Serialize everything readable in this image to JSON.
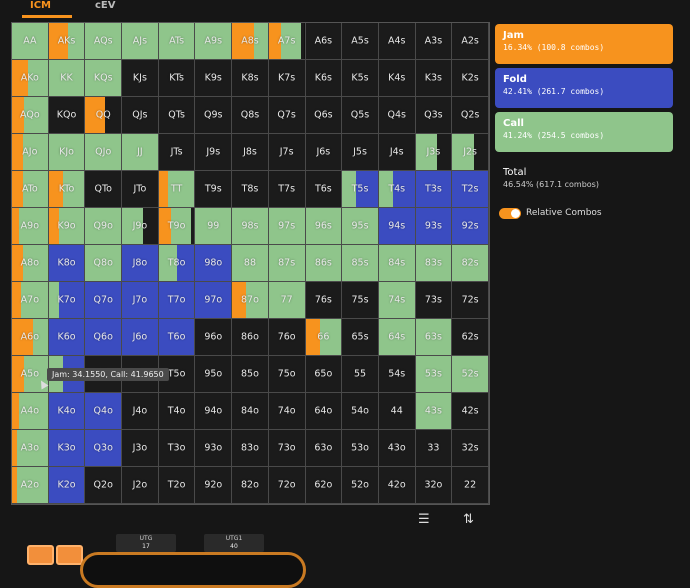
{
  "tabs": [
    {
      "label": "ICM",
      "active": true
    },
    {
      "label": "cEV",
      "active": false
    }
  ],
  "colors": {
    "jam": "#f7931e",
    "fold": "#3b4cc0",
    "call": "#8fc58b",
    "dark": "#1b1b1b"
  },
  "legend": {
    "jam": {
      "title": "Jam",
      "sub": "16.34% (100.8 combos)"
    },
    "fold": {
      "title": "Fold",
      "sub": "42.41% (261.7 combos)"
    },
    "call": {
      "title": "Call",
      "sub": "41.24% (254.5 combos)"
    }
  },
  "total": {
    "title": "Total",
    "sub": "46.54% (617.1 combos)"
  },
  "toggle": {
    "label": "Relative Combos",
    "on": true
  },
  "tooltip": "Jam: 34.1550, Call: 41.9650",
  "seats": [
    {
      "pos": "UTG",
      "stack": "17"
    },
    {
      "pos": "UTG1",
      "stack": "40"
    }
  ],
  "icons": {
    "list": "list-icon",
    "sort": "sort-arrows-icon"
  },
  "hands": [
    [
      "AA",
      "AKs",
      "AQs",
      "AJs",
      "ATs",
      "A9s",
      "A8s",
      "A7s",
      "A6s",
      "A5s",
      "A4s",
      "A3s",
      "A2s"
    ],
    [
      "AKo",
      "KK",
      "KQs",
      "KJs",
      "KTs",
      "K9s",
      "K8s",
      "K7s",
      "K6s",
      "K5s",
      "K4s",
      "K3s",
      "K2s"
    ],
    [
      "AQo",
      "KQo",
      "QQ",
      "QJs",
      "QTs",
      "Q9s",
      "Q8s",
      "Q7s",
      "Q6s",
      "Q5s",
      "Q4s",
      "Q3s",
      "Q2s"
    ],
    [
      "AJo",
      "KJo",
      "QJo",
      "JJ",
      "JTs",
      "J9s",
      "J8s",
      "J7s",
      "J6s",
      "J5s",
      "J4s",
      "J3s",
      "J2s"
    ],
    [
      "ATo",
      "KTo",
      "QTo",
      "JTo",
      "TT",
      "T9s",
      "T8s",
      "T7s",
      "T6s",
      "T5s",
      "T4s",
      "T3s",
      "T2s"
    ],
    [
      "A9o",
      "K9o",
      "Q9o",
      "J9o",
      "T9o",
      "99",
      "98s",
      "97s",
      "96s",
      "95s",
      "94s",
      "93s",
      "92s"
    ],
    [
      "A8o",
      "K8o",
      "Q8o",
      "J8o",
      "T8o",
      "98o",
      "88",
      "87s",
      "86s",
      "85s",
      "84s",
      "83s",
      "82s"
    ],
    [
      "A7o",
      "K7o",
      "Q7o",
      "J7o",
      "T7o",
      "97o",
      "87o",
      "77",
      "76s",
      "75s",
      "74s",
      "73s",
      "72s"
    ],
    [
      "A6o",
      "K6o",
      "Q6o",
      "J6o",
      "T6o",
      "96o",
      "86o",
      "76o",
      "66",
      "65s",
      "64s",
      "63s",
      "62s"
    ],
    [
      "A5o",
      "K5o",
      "Q5o",
      "J5o",
      "T5o",
      "95o",
      "85o",
      "75o",
      "65o",
      "55",
      "54s",
      "53s",
      "52s"
    ],
    [
      "A4o",
      "K4o",
      "Q4o",
      "J4o",
      "T4o",
      "94o",
      "84o",
      "74o",
      "64o",
      "54o",
      "44",
      "43s",
      "42s"
    ],
    [
      "A3o",
      "K3o",
      "Q3o",
      "J3o",
      "T3o",
      "93o",
      "83o",
      "73o",
      "63o",
      "53o",
      "43o",
      "33",
      "32s"
    ],
    [
      "A2o",
      "K2o",
      "Q2o",
      "J2o",
      "T2o",
      "92o",
      "82o",
      "72o",
      "62o",
      "52o",
      "42o",
      "32o",
      "22"
    ]
  ],
  "strategy_note": "Each cell: [jam, call, fold, unplayed] as fractions of cell width.",
  "strategy": [
    [
      [
        0,
        1,
        0,
        0
      ],
      [
        0.55,
        0.45,
        0,
        0
      ],
      [
        0,
        1,
        0,
        0
      ],
      [
        0,
        1,
        0,
        0
      ],
      [
        0,
        1,
        0,
        0
      ],
      [
        0,
        1,
        0,
        0
      ],
      [
        0.6,
        0.4,
        0,
        0
      ],
      [
        0.35,
        0.55,
        0,
        0.1
      ],
      [
        0,
        0,
        0,
        1
      ],
      [
        0,
        0,
        0,
        1
      ],
      [
        0,
        0,
        0,
        1
      ],
      [
        0,
        0,
        0,
        1
      ],
      [
        0,
        0,
        0,
        1
      ]
    ],
    [
      [
        0.45,
        0.55,
        0,
        0
      ],
      [
        0,
        1,
        0,
        0
      ],
      [
        0,
        1,
        0,
        0
      ],
      [
        0,
        0,
        0,
        1
      ],
      [
        0,
        0,
        0,
        1
      ],
      [
        0,
        0,
        0,
        1
      ],
      [
        0,
        0,
        0,
        1
      ],
      [
        0,
        0,
        0,
        1
      ],
      [
        0,
        0,
        0,
        1
      ],
      [
        0,
        0,
        0,
        1
      ],
      [
        0,
        0,
        0,
        1
      ],
      [
        0,
        0,
        0,
        1
      ],
      [
        0,
        0,
        0,
        1
      ]
    ],
    [
      [
        0.35,
        0.65,
        0,
        0
      ],
      [
        0,
        0,
        0,
        1
      ],
      [
        0.55,
        0,
        0,
        0.45
      ],
      [
        0,
        0,
        0,
        1
      ],
      [
        0,
        0,
        0,
        1
      ],
      [
        0,
        0,
        0,
        1
      ],
      [
        0,
        0,
        0,
        1
      ],
      [
        0,
        0,
        0,
        1
      ],
      [
        0,
        0,
        0,
        1
      ],
      [
        0,
        0,
        0,
        1
      ],
      [
        0,
        0,
        0,
        1
      ],
      [
        0,
        0,
        0,
        1
      ],
      [
        0,
        0,
        0,
        1
      ]
    ],
    [
      [
        0.3,
        0.7,
        0,
        0
      ],
      [
        0,
        1,
        0,
        0
      ],
      [
        0,
        1,
        0,
        0
      ],
      [
        0,
        1,
        0,
        0
      ],
      [
        0,
        0,
        0,
        1
      ],
      [
        0,
        0,
        0,
        1
      ],
      [
        0,
        0,
        0,
        1
      ],
      [
        0,
        0,
        0,
        1
      ],
      [
        0,
        0,
        0,
        1
      ],
      [
        0,
        0,
        0,
        1
      ],
      [
        0,
        0,
        0,
        1
      ],
      [
        0,
        0.6,
        0,
        0.4
      ],
      [
        0,
        0.6,
        0,
        0.4
      ]
    ],
    [
      [
        0.3,
        0.7,
        0,
        0
      ],
      [
        0.4,
        0.6,
        0,
        0
      ],
      [
        0,
        0,
        0,
        1
      ],
      [
        0,
        0,
        0,
        1
      ],
      [
        0.25,
        0.75,
        0,
        0
      ],
      [
        0,
        0,
        0,
        1
      ],
      [
        0,
        0,
        0,
        1
      ],
      [
        0,
        0,
        0,
        1
      ],
      [
        0,
        0,
        0,
        1
      ],
      [
        0,
        0.4,
        0.6,
        0
      ],
      [
        0,
        0.4,
        0.6,
        0
      ],
      [
        0,
        0,
        1,
        0
      ],
      [
        0,
        0,
        1,
        0
      ]
    ],
    [
      [
        0.2,
        0.8,
        0,
        0
      ],
      [
        0.3,
        0.7,
        0,
        0
      ],
      [
        0,
        1,
        0,
        0
      ],
      [
        0,
        0.6,
        0,
        0.4
      ],
      [
        0.35,
        0.55,
        0,
        0.1
      ],
      [
        0,
        1,
        0,
        0
      ],
      [
        0,
        1,
        0,
        0
      ],
      [
        0,
        1,
        0,
        0
      ],
      [
        0,
        1,
        0,
        0
      ],
      [
        0,
        1,
        0,
        0
      ],
      [
        0,
        0,
        1,
        0
      ],
      [
        0,
        0,
        1,
        0
      ],
      [
        0,
        0,
        1,
        0
      ]
    ],
    [
      [
        0.3,
        0.7,
        0,
        0
      ],
      [
        0,
        0,
        1,
        0
      ],
      [
        0,
        1,
        0,
        0
      ],
      [
        0,
        0,
        1,
        0
      ],
      [
        0,
        0.5,
        0.5,
        0
      ],
      [
        0,
        0,
        1,
        0
      ],
      [
        0,
        1,
        0,
        0
      ],
      [
        0,
        1,
        0,
        0
      ],
      [
        0,
        1,
        0,
        0
      ],
      [
        0,
        1,
        0,
        0
      ],
      [
        0,
        1,
        0,
        0
      ],
      [
        0,
        1,
        0,
        0
      ],
      [
        0,
        1,
        0,
        0
      ]
    ],
    [
      [
        0.25,
        0.75,
        0,
        0
      ],
      [
        0,
        0.3,
        0.7,
        0
      ],
      [
        0,
        0,
        1,
        0
      ],
      [
        0,
        0,
        1,
        0
      ],
      [
        0,
        0,
        1,
        0
      ],
      [
        0,
        0,
        1,
        0
      ],
      [
        0.4,
        0.6,
        0,
        0
      ],
      [
        0,
        1,
        0,
        0
      ],
      [
        0,
        0,
        0,
        1
      ],
      [
        0,
        0,
        0,
        1
      ],
      [
        0,
        1,
        0,
        0
      ],
      [
        0,
        0,
        0,
        1
      ],
      [
        0,
        0,
        0,
        1
      ]
    ],
    [
      [
        0.6,
        0.4,
        0,
        0
      ],
      [
        0,
        0,
        1,
        0
      ],
      [
        0,
        0,
        1,
        0
      ],
      [
        0,
        0,
        1,
        0
      ],
      [
        0,
        0,
        1,
        0
      ],
      [
        0,
        0,
        0,
        1
      ],
      [
        0,
        0,
        0,
        1
      ],
      [
        0,
        0,
        0,
        1
      ],
      [
        0.4,
        0.6,
        0,
        0
      ],
      [
        0,
        0,
        0,
        1
      ],
      [
        0,
        1,
        0,
        0
      ],
      [
        0,
        1,
        0,
        0
      ],
      [
        0,
        0,
        0,
        1
      ]
    ],
    [
      [
        0.35,
        0.65,
        0,
        0
      ],
      [
        0,
        0.4,
        0.6,
        0
      ],
      [
        0,
        0,
        0,
        1
      ],
      [
        0,
        0,
        0,
        1
      ],
      [
        0,
        0,
        0,
        1
      ],
      [
        0,
        0,
        0,
        1
      ],
      [
        0,
        0,
        0,
        1
      ],
      [
        0,
        0,
        0,
        1
      ],
      [
        0,
        0,
        0,
        1
      ],
      [
        0,
        0,
        0,
        1
      ],
      [
        0,
        0,
        0,
        1
      ],
      [
        0,
        1,
        0,
        0
      ],
      [
        0,
        1,
        0,
        0
      ]
    ],
    [
      [
        0.2,
        0.8,
        0,
        0
      ],
      [
        0,
        0,
        1,
        0
      ],
      [
        0,
        0,
        1,
        0
      ],
      [
        0,
        0,
        0,
        1
      ],
      [
        0,
        0,
        0,
        1
      ],
      [
        0,
        0,
        0,
        1
      ],
      [
        0,
        0,
        0,
        1
      ],
      [
        0,
        0,
        0,
        1
      ],
      [
        0,
        0,
        0,
        1
      ],
      [
        0,
        0,
        0,
        1
      ],
      [
        0,
        0,
        0,
        1
      ],
      [
        0,
        1,
        0,
        0
      ],
      [
        0,
        0,
        0,
        1
      ]
    ],
    [
      [
        0.15,
        0.85,
        0,
        0
      ],
      [
        0,
        0,
        1,
        0
      ],
      [
        0,
        0,
        1,
        0
      ],
      [
        0,
        0,
        0,
        1
      ],
      [
        0,
        0,
        0,
        1
      ],
      [
        0,
        0,
        0,
        1
      ],
      [
        0,
        0,
        0,
        1
      ],
      [
        0,
        0,
        0,
        1
      ],
      [
        0,
        0,
        0,
        1
      ],
      [
        0,
        0,
        0,
        1
      ],
      [
        0,
        0,
        0,
        1
      ],
      [
        0,
        0,
        0,
        1
      ],
      [
        0,
        0,
        0,
        1
      ]
    ],
    [
      [
        0.15,
        0.85,
        0,
        0
      ],
      [
        0,
        0,
        1,
        0
      ],
      [
        0,
        0,
        0,
        1
      ],
      [
        0,
        0,
        0,
        1
      ],
      [
        0,
        0,
        0,
        1
      ],
      [
        0,
        0,
        0,
        1
      ],
      [
        0,
        0,
        0,
        1
      ],
      [
        0,
        0,
        0,
        1
      ],
      [
        0,
        0,
        0,
        1
      ],
      [
        0,
        0,
        0,
        1
      ],
      [
        0,
        0,
        0,
        1
      ],
      [
        0,
        0,
        0,
        1
      ],
      [
        0,
        0,
        0,
        1
      ]
    ]
  ]
}
